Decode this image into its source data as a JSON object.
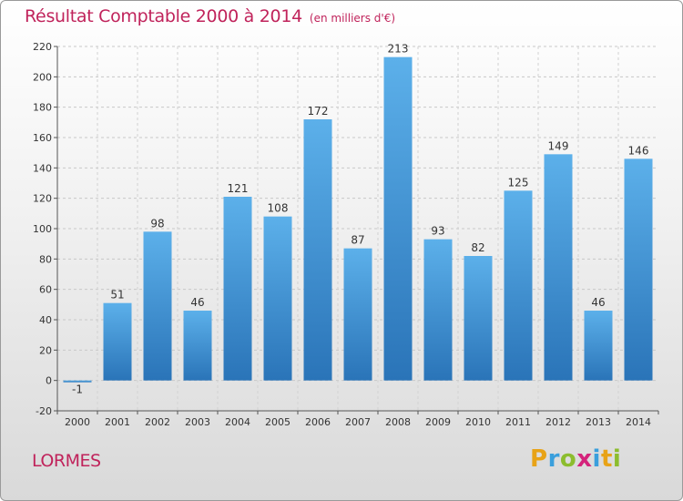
{
  "chart_data": {
    "type": "bar",
    "title": "Résultat Comptable 2000 à 2014",
    "subtitle": "(en milliers d'€)",
    "categories": [
      "2000",
      "2001",
      "2002",
      "2003",
      "2004",
      "2005",
      "2006",
      "2007",
      "2008",
      "2009",
      "2010",
      "2011",
      "2012",
      "2013",
      "2014"
    ],
    "values": [
      -1,
      51,
      98,
      46,
      121,
      108,
      172,
      87,
      213,
      93,
      82,
      125,
      149,
      46,
      146
    ],
    "ylim": [
      -20,
      220
    ],
    "yticks": [
      -20,
      0,
      20,
      40,
      60,
      80,
      100,
      120,
      140,
      160,
      180,
      200,
      220
    ],
    "grid": true,
    "bar_color": "#4b9fe0",
    "bar_color_dark": "#2a74b8"
  },
  "footer": {
    "city": "LORMES",
    "brand_letters": [
      "P",
      "r",
      "o",
      "x",
      "i",
      "t",
      "i"
    ],
    "brand_colors": [
      "#e8a317",
      "#3a9fdc",
      "#8cbd2e",
      "#d4237b",
      "#3a9fdc",
      "#e8a317",
      "#8cbd2e"
    ]
  }
}
